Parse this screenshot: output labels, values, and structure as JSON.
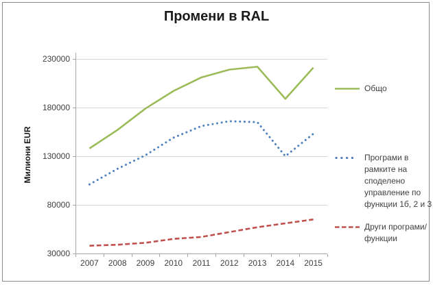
{
  "chart_data": {
    "type": "line",
    "title": "Промени в RAL",
    "ylabel": "Милиони EUR",
    "xlabel": "",
    "categories": [
      "2007",
      "2008",
      "2009",
      "2010",
      "2011",
      "2012",
      "2013",
      "2014",
      "2015"
    ],
    "ylim": [
      30000,
      230000
    ],
    "yticks": [
      30000,
      80000,
      130000,
      180000,
      230000
    ],
    "grid": true,
    "legend_position": "right",
    "series": [
      {
        "name": "Общо",
        "color": "#9BBB59",
        "line_style": "solid",
        "values": [
          138000,
          157000,
          179000,
          197000,
          211000,
          219000,
          222000,
          189000,
          221000
        ]
      },
      {
        "name": "Програми в рамките на споделено управление по функции 1б, 2 и 3",
        "color": "#4F81BD",
        "line_style": "dotted",
        "values": [
          101000,
          117000,
          131000,
          149000,
          161000,
          166000,
          165000,
          130000,
          153000
        ]
      },
      {
        "name": "Други програми/функции",
        "color": "#C0504D",
        "line_style": "dashed",
        "values": [
          38000,
          39000,
          41000,
          45000,
          47000,
          52000,
          57000,
          61000,
          65000
        ]
      }
    ]
  },
  "colors": {
    "grid": "#d6d6d6",
    "axis": "#a6a6a6",
    "tick_text": "#3f3f3f",
    "title_text": "#1a1a1a",
    "frame_border": "#8c8c8c"
  }
}
